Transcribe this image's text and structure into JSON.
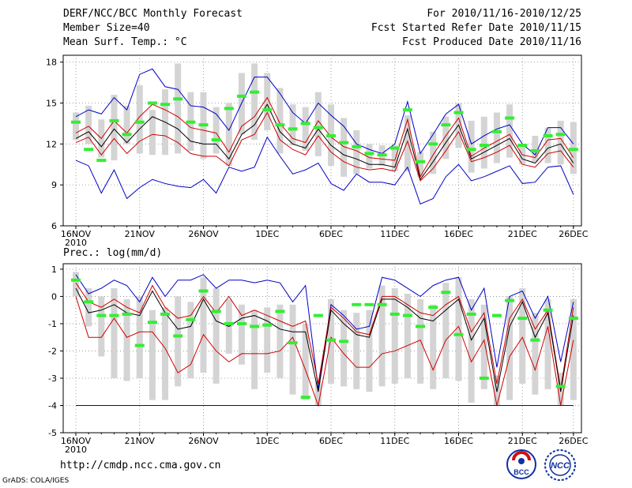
{
  "header": {
    "title": "DERF/NCC/BCC Monthly Forecast",
    "member_size": "Member Size=40",
    "variable": "Mean Surf. Temp.: °C",
    "period": "For 2010/11/16-2010/12/25",
    "started": "Fcst Started Refer Date 2010/11/15",
    "produced": "Fcst Produced Date 2010/11/16"
  },
  "footer": {
    "url": "http://cmdp.ncc.cma.gov.cn",
    "grads": "GrADS: COLA/IGES",
    "logo_bcc_text": "BCC",
    "logo_ncc_text": "NCC"
  },
  "colors": {
    "bar": "#d4d4d4",
    "mean": "#000000",
    "spread": "#d00000",
    "range": "#0000c8",
    "obs": "#33ee33",
    "grid": "#888888"
  },
  "chart_data": [
    {
      "id": "temp",
      "type": "line",
      "title": "Mean Surf. Temp.: °C",
      "ylim": [
        6,
        18.5
      ],
      "yticks": [
        6,
        9,
        12,
        15,
        18
      ],
      "xlim": [
        0,
        39
      ],
      "xticks": [
        {
          "i": 0,
          "label": "16NOV",
          "sub": "2010"
        },
        {
          "i": 5,
          "label": "21NOV"
        },
        {
          "i": 10,
          "label": "26NOV"
        },
        {
          "i": 15,
          "label": "1DEC"
        },
        {
          "i": 20,
          "label": "6DEC"
        },
        {
          "i": 25,
          "label": "11DEC"
        },
        {
          "i": 30,
          "label": "16DEC"
        },
        {
          "i": 35,
          "label": "21DEC"
        },
        {
          "i": 39,
          "label": "26DEC"
        }
      ],
      "series": [
        {
          "name": "max",
          "values": [
            14.0,
            14.5,
            14.2,
            15.4,
            14.5,
            17.1,
            17.5,
            16.2,
            16.0,
            14.8,
            14.7,
            14.2,
            13.0,
            15.0,
            16.9,
            16.9,
            15.7,
            14.3,
            13.5,
            15.0,
            14.1,
            13.3,
            12.0,
            11.6,
            11.3,
            12.0,
            15.1,
            11.3,
            12.7,
            14.2,
            14.9,
            12.0,
            12.6,
            13.1,
            13.4,
            12.0,
            11.2,
            13.2,
            13.2,
            12.0
          ]
        },
        {
          "name": "upper",
          "values": [
            12.8,
            13.3,
            12.4,
            13.7,
            12.8,
            14.0,
            14.9,
            14.5,
            14.0,
            13.2,
            13.0,
            12.8,
            11.4,
            13.3,
            14.0,
            15.4,
            13.5,
            12.4,
            12.1,
            13.7,
            12.5,
            11.8,
            11.5,
            11.0,
            10.9,
            10.8,
            13.8,
            9.6,
            11.2,
            12.6,
            13.9,
            11.1,
            11.7,
            12.2,
            12.7,
            11.2,
            11.0,
            12.3,
            12.4,
            11.0
          ]
        },
        {
          "name": "mean",
          "values": [
            12.4,
            12.9,
            11.8,
            13.1,
            12.1,
            13.1,
            14.0,
            13.6,
            13.1,
            12.2,
            12.0,
            12.0,
            10.9,
            12.7,
            13.4,
            14.9,
            12.9,
            12.0,
            11.7,
            13.1,
            11.9,
            11.2,
            10.9,
            10.5,
            10.5,
            10.3,
            13.1,
            9.4,
            10.7,
            12.1,
            13.4,
            10.9,
            11.4,
            11.9,
            12.4,
            10.9,
            10.6,
            11.7,
            12.0,
            10.6
          ]
        },
        {
          "name": "lower",
          "values": [
            12.1,
            12.5,
            11.2,
            12.4,
            11.3,
            12.2,
            12.7,
            12.6,
            12.1,
            11.3,
            11.1,
            11.1,
            10.4,
            12.3,
            12.7,
            14.3,
            12.3,
            11.6,
            11.2,
            12.6,
            11.4,
            10.7,
            10.3,
            10.1,
            10.2,
            10.0,
            12.2,
            9.3,
            10.2,
            11.5,
            12.9,
            10.7,
            11.0,
            11.4,
            11.9,
            10.5,
            10.3,
            11.3,
            11.5,
            10.3
          ]
        },
        {
          "name": "min",
          "values": [
            10.8,
            10.4,
            8.4,
            10.1,
            8.0,
            8.8,
            9.4,
            9.1,
            8.9,
            8.8,
            9.4,
            8.4,
            10.3,
            10.0,
            10.3,
            12.5,
            11.1,
            9.8,
            10.1,
            10.6,
            9.1,
            8.6,
            9.8,
            9.2,
            9.2,
            9.0,
            10.3,
            7.6,
            8.0,
            9.6,
            10.5,
            9.3,
            9.6,
            10.0,
            10.4,
            9.1,
            9.2,
            10.3,
            10.4,
            8.3
          ]
        },
        {
          "name": "obs",
          "values": [
            13.6,
            11.6,
            10.8,
            13.7,
            12.7,
            13.6,
            15.0,
            14.9,
            15.3,
            13.6,
            13.4,
            12.3,
            14.6,
            15.5,
            15.8,
            14.5,
            13.4,
            13.1,
            13.5,
            13.2,
            12.6,
            12.1,
            11.8,
            11.3,
            11.2,
            11.7,
            14.5,
            10.7,
            12.0,
            13.4,
            14.3,
            11.6,
            11.9,
            12.9,
            13.9,
            11.9,
            11.5,
            12.6,
            12.7,
            11.6
          ]
        }
      ],
      "bars": [
        [
          12.3,
          14.3
        ],
        [
          12.0,
          14.8
        ],
        [
          11.0,
          13.8
        ],
        [
          10.8,
          15.6
        ],
        [
          12.0,
          14.8
        ],
        [
          11.3,
          16.3
        ],
        [
          11.2,
          14.5
        ],
        [
          11.2,
          16.0
        ],
        [
          11.3,
          17.9
        ],
        [
          11.5,
          15.8
        ],
        [
          10.9,
          15.8
        ],
        [
          11.3,
          14.7
        ],
        [
          10.4,
          15.0
        ],
        [
          12.7,
          17.2
        ],
        [
          12.3,
          17.9
        ],
        [
          13.0,
          17.2
        ],
        [
          11.3,
          16.1
        ],
        [
          11.9,
          14.9
        ],
        [
          11.5,
          14.7
        ],
        [
          11.1,
          15.8
        ],
        [
          10.4,
          14.9
        ],
        [
          9.6,
          13.9
        ],
        [
          9.8,
          13.0
        ],
        [
          10.2,
          12.0
        ],
        [
          10.4,
          11.9
        ],
        [
          10.0,
          11.9
        ],
        [
          10.0,
          14.1
        ],
        [
          9.6,
          11.4
        ],
        [
          9.8,
          12.9
        ],
        [
          10.9,
          14.0
        ],
        [
          11.7,
          15.0
        ],
        [
          9.9,
          13.7
        ],
        [
          10.2,
          14.0
        ],
        [
          10.6,
          14.3
        ],
        [
          11.0,
          14.9
        ],
        [
          10.5,
          12.0
        ],
        [
          10.7,
          12.6
        ],
        [
          10.6,
          13.2
        ],
        [
          10.5,
          13.7
        ],
        [
          9.8,
          13.6
        ]
      ]
    },
    {
      "id": "prec",
      "type": "line",
      "title": "Prec.: log(mm/d)",
      "ylim": [
        -5,
        1.2
      ],
      "yticks": [
        -5,
        -4,
        -3,
        -2,
        -1,
        0,
        1
      ],
      "xlim": [
        0,
        39
      ],
      "xticks": [
        {
          "i": 0,
          "label": "16NOV",
          "sub": "2010"
        },
        {
          "i": 5,
          "label": "21NOV"
        },
        {
          "i": 10,
          "label": "26NOV"
        },
        {
          "i": 15,
          "label": "1DEC"
        },
        {
          "i": 20,
          "label": "6DEC"
        },
        {
          "i": 25,
          "label": "11DEC"
        },
        {
          "i": 30,
          "label": "16DEC"
        },
        {
          "i": 35,
          "label": "21DEC"
        },
        {
          "i": 39,
          "label": "26DEC"
        }
      ],
      "series": [
        {
          "name": "max",
          "values": [
            0.8,
            0.1,
            0.3,
            0.6,
            0.4,
            -0.2,
            0.7,
            0.0,
            0.6,
            0.6,
            0.8,
            0.3,
            0.6,
            0.6,
            0.5,
            0.6,
            0.5,
            -0.2,
            0.4,
            -3.4,
            -0.3,
            -0.7,
            -1.2,
            -1.1,
            0.7,
            0.6,
            0.3,
            0.0,
            0.4,
            0.6,
            0.7,
            -0.5,
            0.3,
            -2.6,
            0.0,
            0.2,
            -0.8,
            0.0,
            -2.4,
            -0.2
          ]
        },
        {
          "name": "upper",
          "values": [
            0.5,
            -0.2,
            -0.4,
            -0.1,
            -0.4,
            -0.6,
            0.4,
            -0.4,
            -0.8,
            -0.7,
            0.0,
            -0.6,
            0.0,
            -0.7,
            -0.5,
            -0.7,
            -0.9,
            -1.1,
            -0.9,
            -3.2,
            -0.4,
            -0.8,
            -1.3,
            -1.4,
            0.0,
            0.0,
            -0.3,
            -0.6,
            -0.7,
            -0.3,
            0.0,
            -1.3,
            -0.6,
            -3.2,
            -0.8,
            -0.1,
            -1.2,
            -0.5,
            -3.4,
            -0.4
          ]
        },
        {
          "name": "mean",
          "values": [
            0.3,
            -0.6,
            -0.5,
            -0.3,
            -0.6,
            -0.7,
            0.2,
            -0.6,
            -1.2,
            -1.1,
            -0.1,
            -0.9,
            -1.1,
            -0.8,
            -0.7,
            -0.9,
            -1.2,
            -1.3,
            -1.3,
            -3.5,
            -0.5,
            -1.0,
            -1.4,
            -1.5,
            -0.1,
            -0.1,
            -0.4,
            -0.8,
            -0.9,
            -0.5,
            -0.1,
            -1.6,
            -0.8,
            -3.5,
            -1.1,
            -0.2,
            -1.5,
            -0.6,
            -3.5,
            -0.7
          ]
        },
        {
          "name": "lower",
          "values": [
            0.0,
            -1.5,
            -1.5,
            -0.8,
            -1.5,
            -1.3,
            -1.3,
            -1.9,
            -2.8,
            -2.5,
            -1.4,
            -2.0,
            -2.4,
            -2.1,
            -2.1,
            -2.1,
            -2.0,
            -1.5,
            -2.7,
            -4.0,
            -1.5,
            -2.1,
            -2.6,
            -2.6,
            -2.1,
            -2.0,
            -1.8,
            -1.6,
            -2.7,
            -1.6,
            -1.1,
            -2.4,
            -1.6,
            -4.0,
            -2.2,
            -1.5,
            -2.7,
            -1.1,
            -4.0,
            -1.6
          ]
        },
        {
          "name": "min",
          "values": [
            -4.0,
            -4.0,
            -4.0,
            -4.0,
            -4.0,
            -4.0,
            -4.0,
            -4.0,
            -4.0,
            -4.0,
            -4.0,
            -4.0,
            -4.0,
            -4.0,
            -4.0,
            -4.0,
            -4.0,
            -4.0,
            -4.0,
            -4.0,
            -4.0,
            -4.0,
            -4.0,
            -4.0,
            -4.0,
            -4.0,
            -4.0,
            -4.0,
            -4.0,
            -4.0,
            -4.0,
            -4.0,
            -4.0,
            -4.0,
            -4.0,
            -4.0,
            -4.0,
            -4.0,
            -4.0,
            -4.0
          ]
        },
        {
          "name": "obs",
          "values": [
            0.6,
            -0.2,
            -0.7,
            -0.7,
            -0.65,
            -1.8,
            -0.95,
            -0.65,
            -1.45,
            -0.85,
            0.2,
            -0.55,
            -1.0,
            -1.0,
            -1.1,
            -1.05,
            -0.55,
            -1.7,
            -3.7,
            -0.7,
            -1.6,
            -1.65,
            -0.3,
            -0.3,
            -0.3,
            -0.65,
            -0.7,
            -1.1,
            -0.4,
            0.15,
            -1.4,
            -0.65,
            -3.0,
            -0.7,
            -0.15,
            -0.8,
            -1.6,
            -0.5,
            -3.3,
            -0.8
          ]
        }
      ],
      "bars": [
        [
          0.0,
          0.9
        ],
        [
          -1.1,
          0.3
        ],
        [
          -2.2,
          0.0
        ],
        [
          -3.0,
          0.3
        ],
        [
          -3.1,
          -0.1
        ],
        [
          -3.0,
          0.0
        ],
        [
          -3.8,
          -0.5
        ],
        [
          -3.8,
          -0.4
        ],
        [
          -3.3,
          0.0
        ],
        [
          -3.0,
          -0.2
        ],
        [
          -2.8,
          0.7
        ],
        [
          -3.2,
          0.3
        ],
        [
          -2.1,
          -0.1
        ],
        [
          -2.5,
          -0.3
        ],
        [
          -3.4,
          -0.5
        ],
        [
          -2.8,
          -0.4
        ],
        [
          -3.0,
          -0.3
        ],
        [
          -3.6,
          -0.3
        ],
        [
          -3.8,
          -1.0
        ],
        [
          -4.0,
          -3.1
        ],
        [
          -3.2,
          -0.1
        ],
        [
          -3.3,
          -0.5
        ],
        [
          -3.4,
          -0.6
        ],
        [
          -3.5,
          -0.5
        ],
        [
          -3.3,
          0.4
        ],
        [
          -3.2,
          0.3
        ],
        [
          -3.0,
          0.1
        ],
        [
          -3.2,
          -0.1
        ],
        [
          -3.4,
          -0.3
        ],
        [
          -3.0,
          0.5
        ],
        [
          -3.1,
          0.7
        ],
        [
          -3.9,
          -0.1
        ],
        [
          -3.4,
          -0.3
        ],
        [
          -4.0,
          -2.9
        ],
        [
          -3.8,
          0.0
        ],
        [
          -3.2,
          0.3
        ],
        [
          -3.6,
          -0.6
        ],
        [
          -3.4,
          -0.1
        ],
        [
          -4.0,
          -2.8
        ],
        [
          -3.8,
          -0.1
        ]
      ]
    }
  ]
}
